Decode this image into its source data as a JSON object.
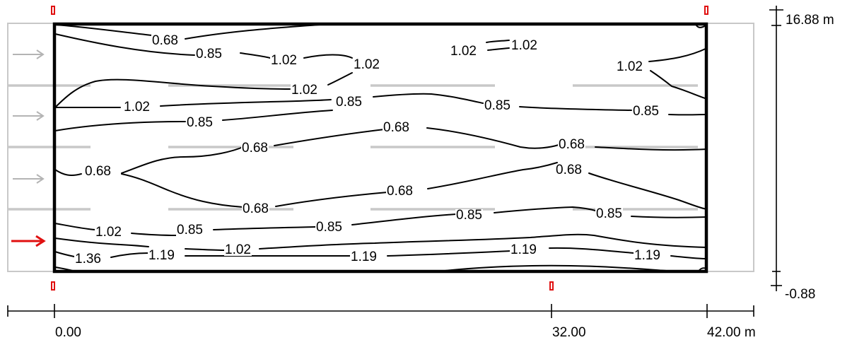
{
  "diagram": {
    "contour_labels": [
      {
        "text": "0.68"
      },
      {
        "text": "0.85"
      },
      {
        "text": "1.02"
      },
      {
        "text": "1.02"
      },
      {
        "text": "1.02"
      },
      {
        "text": "1.02"
      },
      {
        "text": "1.02"
      },
      {
        "text": "1.02"
      },
      {
        "text": "1.02"
      },
      {
        "text": "0.85"
      },
      {
        "text": "0.85"
      },
      {
        "text": "0.85"
      },
      {
        "text": "0.85"
      },
      {
        "text": "0.68"
      },
      {
        "text": "0.68"
      },
      {
        "text": "0.68"
      },
      {
        "text": "0.68"
      },
      {
        "text": "0.68"
      },
      {
        "text": "0.68"
      },
      {
        "text": "0.68"
      },
      {
        "text": "1.02"
      },
      {
        "text": "0.85"
      },
      {
        "text": "0.85"
      },
      {
        "text": "0.85"
      },
      {
        "text": "0.85"
      },
      {
        "text": "1.36"
      },
      {
        "text": "1.19"
      },
      {
        "text": "1.02"
      },
      {
        "text": "1.19"
      },
      {
        "text": "1.19"
      },
      {
        "text": "1.19"
      }
    ],
    "x_axis": {
      "ticks": [
        "0.00",
        "32.00",
        "42.00 m"
      ]
    },
    "y_axis": {
      "top": "16.88 m",
      "bottom": "-0.88"
    },
    "colors": {
      "contour": "#000000",
      "road": "#c8c8c8",
      "observer_arrow": "#e01010",
      "luminaire": "#e01010"
    },
    "icons": [
      "lane-direction-arrow",
      "observer-arrow",
      "luminaire-marker"
    ]
  }
}
